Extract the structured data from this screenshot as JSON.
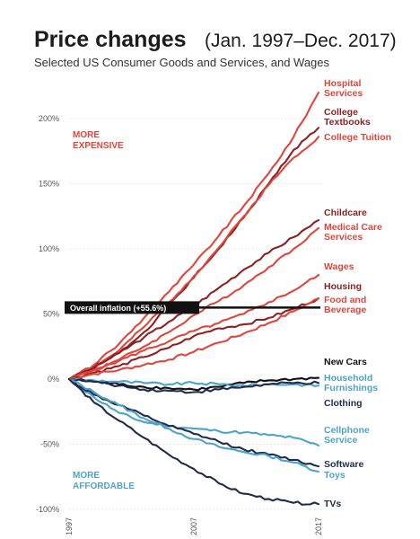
{
  "title": {
    "main": "Price changes",
    "range": "(Jan. 1997–Dec. 2017)",
    "subtitle": "Selected US Consumer Goods and Services, and Wages"
  },
  "regions": {
    "more_expensive": [
      "MORE",
      "EXPENSIVE"
    ],
    "more_affordable": [
      "MORE",
      "AFFORDABLE"
    ]
  },
  "colors": {
    "red": "#e0463c",
    "darkred": "#8e2222",
    "lightblue": "#4da3cf",
    "navy": "#1f2c4c",
    "black": "#111111",
    "grid": "#d8d8d8"
  },
  "chart_data": {
    "type": "line",
    "title": "Price changes (Jan. 1997–Dec. 2017)",
    "subtitle": "Selected US Consumer Goods and Services, and Wages",
    "xlabel": "",
    "ylabel": "",
    "xlim": [
      1997,
      2017
    ],
    "ylim": [
      -100,
      225
    ],
    "x_ticks": [
      "1997",
      "2007",
      "2017"
    ],
    "y_ticks": [
      {
        "value": 200,
        "label": "200%"
      },
      {
        "value": 150,
        "label": "150%"
      },
      {
        "value": 100,
        "label": "100%"
      },
      {
        "value": 50,
        "label": "50%"
      },
      {
        "value": 0,
        "label": "0%"
      },
      {
        "value": -50,
        "label": "-50%"
      },
      {
        "value": -100,
        "label": "-100%"
      }
    ],
    "grid": "horizontal-dotted",
    "reference_line": {
      "label": "Overall inflation (+55.6%)",
      "value": 55.6
    },
    "x": [
      1997,
      1999,
      2001,
      2003,
      2005,
      2007,
      2009,
      2011,
      2013,
      2015,
      2017
    ],
    "series": [
      {
        "name": "Hospital Services",
        "label": [
          "Hospital",
          "Services"
        ],
        "color": "red",
        "values": [
          0,
          11,
          27,
          47,
          67,
          88,
          110,
          133,
          158,
          186,
          220
        ]
      },
      {
        "name": "College Textbooks",
        "label": [
          "College",
          "Textbooks"
        ],
        "color": "darkred",
        "values": [
          0,
          8,
          20,
          36,
          56,
          78,
          100,
          124,
          150,
          176,
          193
        ]
      },
      {
        "name": "College Tuition",
        "label": [
          "College Tuition"
        ],
        "color": "red",
        "values": [
          0,
          9,
          22,
          40,
          59,
          79,
          101,
          125,
          149,
          170,
          186
        ]
      },
      {
        "name": "Childcare",
        "label": [
          "Childcare"
        ],
        "color": "darkred",
        "values": [
          0,
          9,
          20,
          32,
          44,
          56,
          70,
          84,
          97,
          109,
          122
        ]
      },
      {
        "name": "Medical Care Services",
        "label": [
          "Medical Care",
          "Services"
        ],
        "color": "red",
        "values": [
          0,
          7,
          15,
          25,
          36,
          49,
          60,
          72,
          86,
          100,
          116
        ]
      },
      {
        "name": "Wages",
        "label": [
          "Wages"
        ],
        "color": "red",
        "values": [
          0,
          7,
          14,
          22,
          29,
          37,
          43,
          50,
          59,
          68,
          80
        ]
      },
      {
        "name": "Housing",
        "label": [
          "Housing"
        ],
        "color": "darkred",
        "values": [
          0,
          5,
          10,
          17,
          24,
          33,
          39,
          42,
          47,
          54,
          62
        ]
      },
      {
        "name": "Food and Beverage",
        "label": [
          "Food and",
          "Beverage"
        ],
        "color": "red",
        "values": [
          0,
          4,
          7,
          11,
          15,
          21,
          28,
          35,
          43,
          52,
          62
        ]
      },
      {
        "name": "New Cars",
        "label": [
          "New Cars"
        ],
        "color": "black",
        "values": [
          0,
          -2,
          -4,
          -6,
          -7,
          -8,
          -6,
          -3,
          -1,
          0,
          1
        ]
      },
      {
        "name": "Household Furnishings",
        "label": [
          "Household",
          "Furnishings"
        ],
        "color": "lightblue",
        "values": [
          0,
          -1,
          -2,
          -3,
          -4,
          -3,
          -4,
          -5,
          -4,
          -4,
          -5
        ]
      },
      {
        "name": "Clothing",
        "label": [
          "Clothing"
        ],
        "color": "navy",
        "values": [
          0,
          -2,
          -5,
          -8,
          -9,
          -10,
          -8,
          -6,
          -4,
          -3,
          -3
        ]
      },
      {
        "name": "Cellphone Service",
        "label": [
          "Cellphone",
          "Service"
        ],
        "color": "lightblue",
        "values": [
          0,
          -14,
          -26,
          -33,
          -36,
          -38,
          -40,
          -41,
          -43,
          -45,
          -51
        ]
      },
      {
        "name": "Software",
        "label": [
          "Software"
        ],
        "color": "navy",
        "values": [
          0,
          -12,
          -20,
          -28,
          -36,
          -42,
          -48,
          -54,
          -58,
          -62,
          -67
        ]
      },
      {
        "name": "Toys",
        "label": [
          "Toys"
        ],
        "color": "lightblue",
        "values": [
          0,
          -10,
          -20,
          -30,
          -38,
          -46,
          -52,
          -56,
          -59,
          -64,
          -71
        ]
      },
      {
        "name": "TVs",
        "label": [
          "TVs"
        ],
        "color": "navy",
        "values": [
          0,
          -18,
          -32,
          -45,
          -58,
          -69,
          -80,
          -88,
          -92,
          -95,
          -96
        ]
      }
    ]
  }
}
